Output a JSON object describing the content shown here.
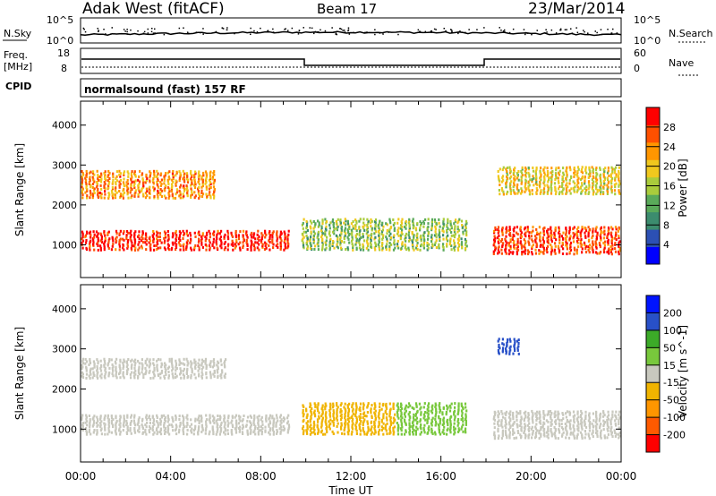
{
  "header": {
    "title": "Adak West (fitACF)",
    "beam": "Beam 17",
    "date": "23/Mar/2014"
  },
  "panels": {
    "nsky": {
      "left_label": "N.Sky",
      "right_label": "N.Search",
      "left_ticks": [
        "10^5",
        "10^0"
      ],
      "right_ticks": [
        "10^5",
        "10^0"
      ]
    },
    "freq": {
      "left_label_line1": "Freq.",
      "left_label_line2": "[MHz]",
      "right_label": "Nave",
      "left_ticks": [
        "18",
        "8"
      ],
      "right_ticks": [
        "60",
        "0"
      ]
    },
    "cpid": {
      "label": "CPID",
      "text": "normalsound (fast) 157 RF"
    }
  },
  "colors": {
    "power_scale": [
      "#0000ff",
      "#2c50b4",
      "#3c8c6e",
      "#5aaa5a",
      "#aacc3c",
      "#f0c81e",
      "#ff9600",
      "#ff5000",
      "#ff0000"
    ],
    "velocity_scale": [
      "#ff0000",
      "#ff5a00",
      "#ff9600",
      "#f0b400",
      "#c8c8be",
      "#78c83c",
      "#3caa28",
      "#2850c8",
      "#0014ff"
    ],
    "frame": "#000000"
  },
  "chart_data": [
    {
      "type": "heatmap",
      "name": "power",
      "ylabel": "Slant Range [km]",
      "yticks": [
        "4000",
        "3000",
        "2000",
        "1000"
      ],
      "ylim": [
        180,
        4600
      ],
      "xlim": [
        0,
        24
      ],
      "xticks": [
        "00:00",
        "04:00",
        "08:00",
        "12:00",
        "16:00",
        "20:00",
        "00:00"
      ],
      "colorbar": {
        "label": "Power [dB]",
        "ticks": [
          "28",
          "24",
          "20",
          "16",
          "12",
          "8",
          "4"
        ],
        "range": [
          0,
          30
        ]
      },
      "regions": [
        {
          "desc": "strong near echo",
          "x": [
            0,
            9.3
          ],
          "y": [
            900,
            1400
          ],
          "value": 28
        },
        {
          "desc": "far echo",
          "x": [
            0,
            6.0
          ],
          "y": [
            2200,
            2900
          ],
          "value": 22
        },
        {
          "desc": "midday echo",
          "x": [
            9.8,
            17.2
          ],
          "y": [
            900,
            1700
          ],
          "value": 14
        },
        {
          "desc": "evening near echo",
          "x": [
            18.3,
            24
          ],
          "y": [
            800,
            1500
          ],
          "value": 26
        },
        {
          "desc": "evening far echo",
          "x": [
            18.5,
            24
          ],
          "y": [
            2300,
            3000
          ],
          "value": 18
        }
      ]
    },
    {
      "type": "heatmap",
      "name": "velocity",
      "ylabel": "Slant Range [km]",
      "yticks": [
        "4000",
        "3000",
        "2000",
        "1000"
      ],
      "ylim": [
        180,
        4600
      ],
      "xlim": [
        0,
        24
      ],
      "xticks": [
        "00:00",
        "04:00",
        "08:00",
        "12:00",
        "16:00",
        "20:00",
        "00:00"
      ],
      "xlabel": "Time UT",
      "colorbar": {
        "label": "Velocity [m s^-1]",
        "ticks": [
          "200",
          "100",
          "50",
          "15",
          "-15",
          "-50",
          "-100",
          "-200"
        ],
        "range": [
          -250,
          250
        ]
      },
      "regions": [
        {
          "desc": "ground scatter near",
          "x": [
            0,
            9.3
          ],
          "y": [
            900,
            1400
          ],
          "value": 0
        },
        {
          "desc": "ground scatter far",
          "x": [
            0,
            6.5
          ],
          "y": [
            2300,
            2800
          ],
          "value": 0
        },
        {
          "desc": "midday negative velocities",
          "x": [
            9.8,
            14.0
          ],
          "y": [
            900,
            1700
          ],
          "value": -60
        },
        {
          "desc": "midday positive velocities",
          "x": [
            14.0,
            17.2
          ],
          "y": [
            900,
            1700
          ],
          "value": 40
        },
        {
          "desc": "evening ground scatter",
          "x": [
            18.3,
            24
          ],
          "y": [
            800,
            1500
          ],
          "value": 0
        },
        {
          "desc": "evening high velocity",
          "x": [
            18.5,
            19.5
          ],
          "y": [
            2900,
            3300
          ],
          "value": 180
        }
      ]
    }
  ]
}
